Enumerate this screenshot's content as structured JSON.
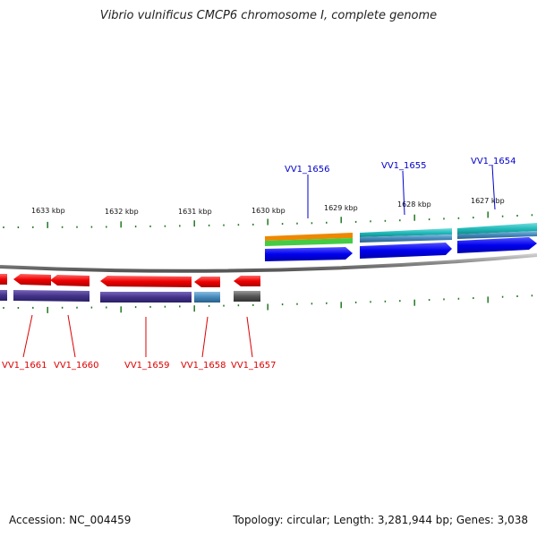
{
  "title": "Vibrio vulnificus CMCP6 chromosome I, complete genome",
  "footer": {
    "accession": "Accession: NC_004459",
    "summary": "Topology: circular; Length: 3,281,944 bp; Genes: 3,038"
  },
  "ticks": [
    {
      "label": "1633 kbp"
    },
    {
      "label": "1632 kbp"
    },
    {
      "label": "1631 kbp"
    },
    {
      "label": "1630 kbp"
    },
    {
      "label": "1629 kbp"
    },
    {
      "label": "1628 kbp"
    },
    {
      "label": "1627 kbp"
    }
  ],
  "genes_forward": [
    {
      "id": "VV1_1656",
      "label": "VV1_1656",
      "color": "#0000cc"
    },
    {
      "id": "VV1_1655",
      "label": "VV1_1655",
      "color": "#0000cc"
    },
    {
      "id": "VV1_1654",
      "label": "VV1_1654",
      "color": "#0000cc"
    }
  ],
  "genes_reverse": [
    {
      "id": "VV1_1661",
      "label": "VV1_1661",
      "color": "#dd0000"
    },
    {
      "id": "VV1_1660",
      "label": "VV1_1660",
      "color": "#dd0000"
    },
    {
      "id": "VV1_1659",
      "label": "VV1_1659",
      "color": "#dd0000"
    },
    {
      "id": "VV1_1658",
      "label": "VV1_1658",
      "color": "#dd0000"
    },
    {
      "id": "VV1_1657",
      "label": "VV1_1657",
      "color": "#dd0000"
    }
  ],
  "colors": {
    "forward_gene": "#0000ee",
    "reverse_gene": "#ee0000",
    "backbone": "#888888",
    "tick": "#227722",
    "feature_orange": "#ee8800",
    "feature_green": "#44cc44",
    "feature_teal": "#22bbbb",
    "feature_purple": "#443388",
    "feature_steelblue": "#4488bb",
    "feature_grey": "#555555"
  }
}
